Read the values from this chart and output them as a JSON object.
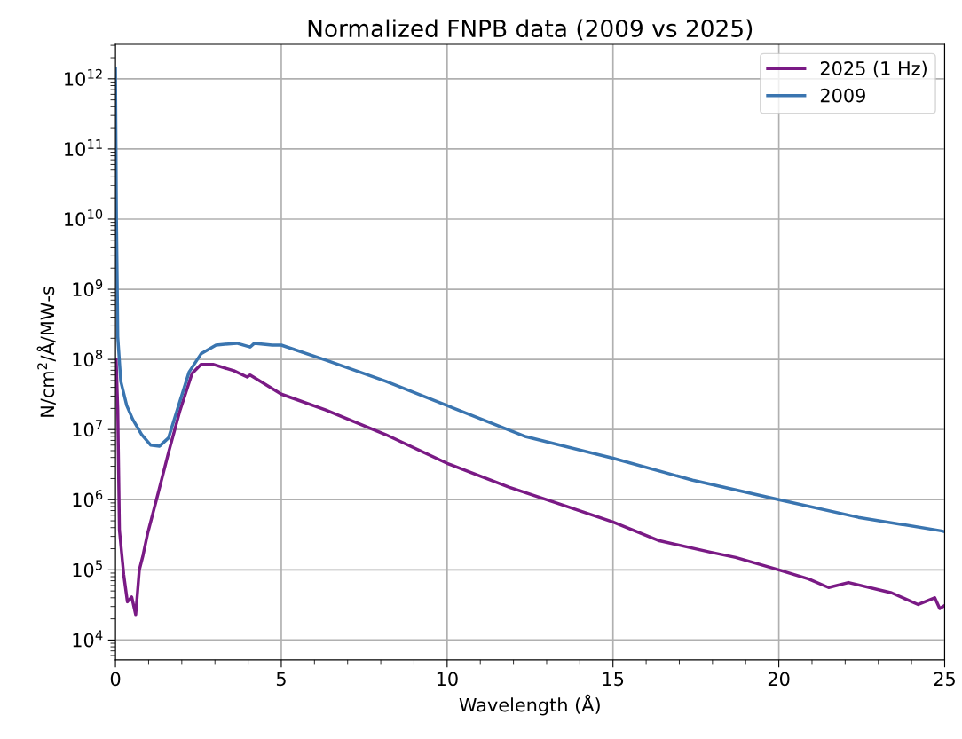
{
  "chart_data": {
    "type": "line",
    "title": "Normalized FNPB data (2009 vs 2025)",
    "xlabel": "Wavelength (Å)",
    "ylabel": "N/cm$^{2}$/Å/MW-s",
    "log": "y",
    "grid": true,
    "legend": "top right",
    "marker": "none",
    "line_style": "solid",
    "xlim": [
      0,
      25
    ],
    "xticks": [
      0,
      5,
      10,
      15,
      20,
      25
    ],
    "ylim": [
      5200,
      3100000000000.0
    ],
    "yticks": [
      {
        "value": 10000,
        "label": "10$^{4}$"
      },
      {
        "value": 100000,
        "label": "10$^{5}$"
      },
      {
        "value": 1000000,
        "label": "10$^{6}$"
      },
      {
        "value": 10000000,
        "label": "10$^{7}$"
      },
      {
        "value": 100000000,
        "label": "10$^{8}$"
      },
      {
        "value": 1000000000,
        "label": "10$^{9}$"
      },
      {
        "value": 10000000000,
        "label": "10$^{10}$"
      },
      {
        "value": 100000000000,
        "label": "10$^{11}$"
      },
      {
        "value": 1000000000000,
        "label": "10$^{12}$"
      }
    ],
    "series": [
      {
        "name": "2025 (1 Hz)",
        "color": "#7a1a85",
        "x": [
          0.02,
          0.07,
          0.12,
          0.25,
          0.36,
          0.49,
          0.61,
          0.72,
          0.83,
          0.97,
          1.28,
          1.6,
          1.95,
          2.31,
          2.58,
          2.94,
          3.57,
          3.97,
          4.06,
          5.0,
          6.34,
          8.14,
          10,
          11.88,
          13.39,
          15,
          16.4,
          17.9,
          18.7,
          20,
          20.9,
          21.5,
          22.1,
          23.4,
          24.2,
          24.7,
          24.85,
          25
        ],
        "values": [
          100000000.0,
          19000000.0,
          370000.0,
          85000.0,
          35000.0,
          41000.0,
          23000.0,
          100000.0,
          160000.0,
          330000.0,
          1200000.0,
          4700000.0,
          19000000.0,
          63000000.0,
          85000000.0,
          85000000.0,
          69000000.0,
          56000000.0,
          60000000.0,
          32000000.0,
          19000000.0,
          8500000.0,
          3300000.0,
          1500000.0,
          870000.0,
          480000.0,
          260000.0,
          180000.0,
          150000.0,
          100000.0,
          74000.0,
          56000.0,
          66000.0,
          47000.0,
          32000.0,
          40000.0,
          28000.0,
          31000.0
        ]
      },
      {
        "name": "2009",
        "color": "#3a75b0",
        "x": [
          0,
          0.03,
          0.06,
          0.07,
          0.16,
          0.34,
          0.52,
          0.79,
          1.06,
          1.33,
          1.6,
          1.86,
          2.22,
          2.58,
          3.03,
          3.66,
          4.06,
          4.19,
          4.73,
          5.0,
          6.34,
          8.14,
          10,
          12.38,
          15,
          17.4,
          20,
          22.4,
          24.9,
          25
        ],
        "values": [
          1400000000000.0,
          10000000000.0,
          630000000.0,
          210000000.0,
          49000000.0,
          22000000.0,
          14000000.0,
          8500000.0,
          6000000.0,
          5800000.0,
          7600000.0,
          19000000.0,
          66000000.0,
          120000000.0,
          160000000.0,
          170000000.0,
          150000000.0,
          170000000.0,
          160000000.0,
          160000000.0,
          98000000.0,
          49000000.0,
          22000000.0,
          7900000.0,
          3900000.0,
          1900000.0,
          1000000.0,
          560000.0,
          360000.0,
          350000.0
        ]
      }
    ]
  }
}
